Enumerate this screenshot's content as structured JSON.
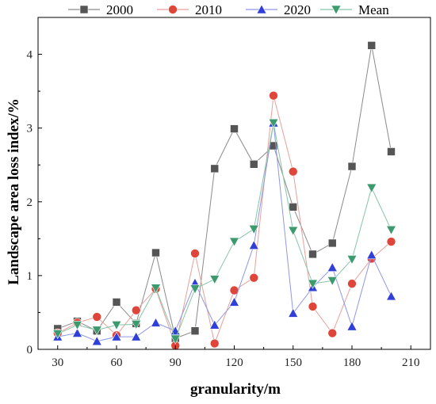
{
  "chart_data": {
    "type": "line",
    "xlabel": "granularity/m",
    "ylabel": "Landscape area loss index/%",
    "xlim": [
      20,
      220
    ],
    "ylim": [
      0,
      4.5
    ],
    "x_ticks": [
      30,
      60,
      90,
      120,
      150,
      180,
      210
    ],
    "y_ticks": [
      0,
      1,
      2,
      3,
      4
    ],
    "legend_position": "top",
    "grid": false,
    "x": [
      30,
      40,
      50,
      60,
      70,
      80,
      90,
      100,
      110,
      120,
      130,
      140,
      150,
      160,
      170,
      180,
      190,
      200
    ],
    "series": [
      {
        "name": "2000",
        "marker": "square",
        "color": "#555555",
        "line_color": "#8a8a8a",
        "values": [
          0.28,
          0.38,
          0.25,
          0.64,
          0.35,
          1.31,
          0.15,
          0.25,
          2.45,
          2.99,
          2.51,
          2.76,
          1.93,
          1.29,
          1.44,
          2.48,
          4.12,
          2.68
        ]
      },
      {
        "name": "2010",
        "marker": "circle",
        "color": "#e0453a",
        "line_color": "#e8a09a",
        "values": [
          0.22,
          0.36,
          0.44,
          0.19,
          0.53,
          0.82,
          0.05,
          1.3,
          0.08,
          0.8,
          0.97,
          3.44,
          2.41,
          0.58,
          0.22,
          0.89,
          1.23,
          1.46
        ]
      },
      {
        "name": "2020",
        "marker": "triangle-up",
        "color": "#2f3fd8",
        "line_color": "#8f97e6",
        "values": [
          0.17,
          0.22,
          0.11,
          0.17,
          0.17,
          0.36,
          0.25,
          0.9,
          0.33,
          0.64,
          1.41,
          3.07,
          0.49,
          0.84,
          1.11,
          0.31,
          1.28,
          0.72
        ]
      },
      {
        "name": "Mean",
        "marker": "triangle-down",
        "color": "#3c9a6e",
        "line_color": "#86c4a6",
        "values": [
          0.21,
          0.33,
          0.26,
          0.33,
          0.34,
          0.83,
          0.14,
          0.82,
          0.95,
          1.46,
          1.63,
          3.07,
          1.61,
          0.89,
          0.93,
          1.22,
          2.19,
          1.62
        ]
      }
    ]
  }
}
